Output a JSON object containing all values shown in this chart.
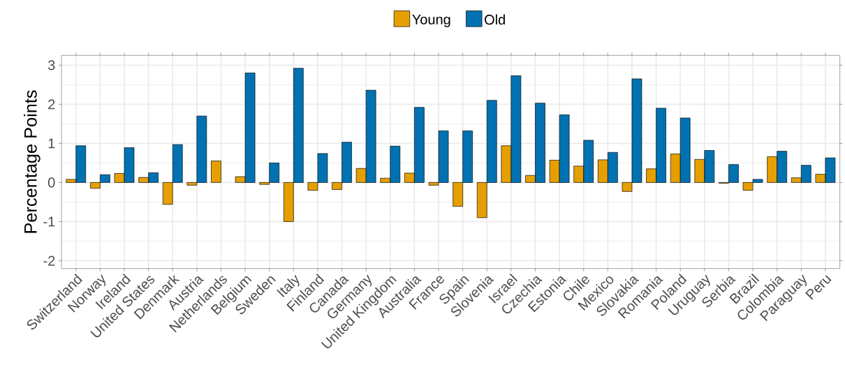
{
  "chart_data": {
    "type": "bar",
    "ylabel": "Percentage Points",
    "categories": [
      "Switzerland",
      "Norway",
      "Ireland",
      "United States",
      "Denmark",
      "Austria",
      "Netherlands",
      "Belgium",
      "Sweden",
      "Italy",
      "Finland",
      "Canada",
      "Germany",
      "United Kingdom",
      "Australia",
      "France",
      "Spain",
      "Slovenia",
      "Israel",
      "Czechia",
      "Estonia",
      "Chile",
      "Mexico",
      "Slovakia",
      "Romania",
      "Poland",
      "Uruguay",
      "Serbia",
      "Brazil",
      "Colombia",
      "Paraguay",
      "Peru"
    ],
    "series": [
      {
        "name": "Young",
        "color": "#e69f00",
        "values": [
          0.08,
          -0.15,
          0.23,
          0.13,
          -0.56,
          -0.07,
          0.55,
          0.15,
          -0.05,
          -1.0,
          -0.2,
          -0.18,
          0.36,
          0.11,
          0.24,
          -0.07,
          -0.61,
          -0.9,
          0.94,
          0.18,
          0.57,
          0.42,
          0.58,
          -0.23,
          0.35,
          0.73,
          0.59,
          -0.02,
          -0.2,
          0.66,
          0.12,
          0.21
        ]
      },
      {
        "name": "Old",
        "color": "#0072b2",
        "values": [
          0.94,
          0.2,
          0.89,
          0.25,
          0.97,
          1.7,
          null,
          2.8,
          0.5,
          2.92,
          0.74,
          1.03,
          2.36,
          0.93,
          1.92,
          1.32,
          1.32,
          2.1,
          2.73,
          2.03,
          1.73,
          1.08,
          0.77,
          2.65,
          1.9,
          1.65,
          0.82,
          0.46,
          0.08,
          0.8,
          0.44,
          0.63
        ]
      }
    ],
    "ylim": [
      -2.2,
      3.25
    ],
    "yticks": [
      -2,
      -1,
      0,
      1,
      2,
      3
    ],
    "grid": true,
    "legend": "top"
  }
}
